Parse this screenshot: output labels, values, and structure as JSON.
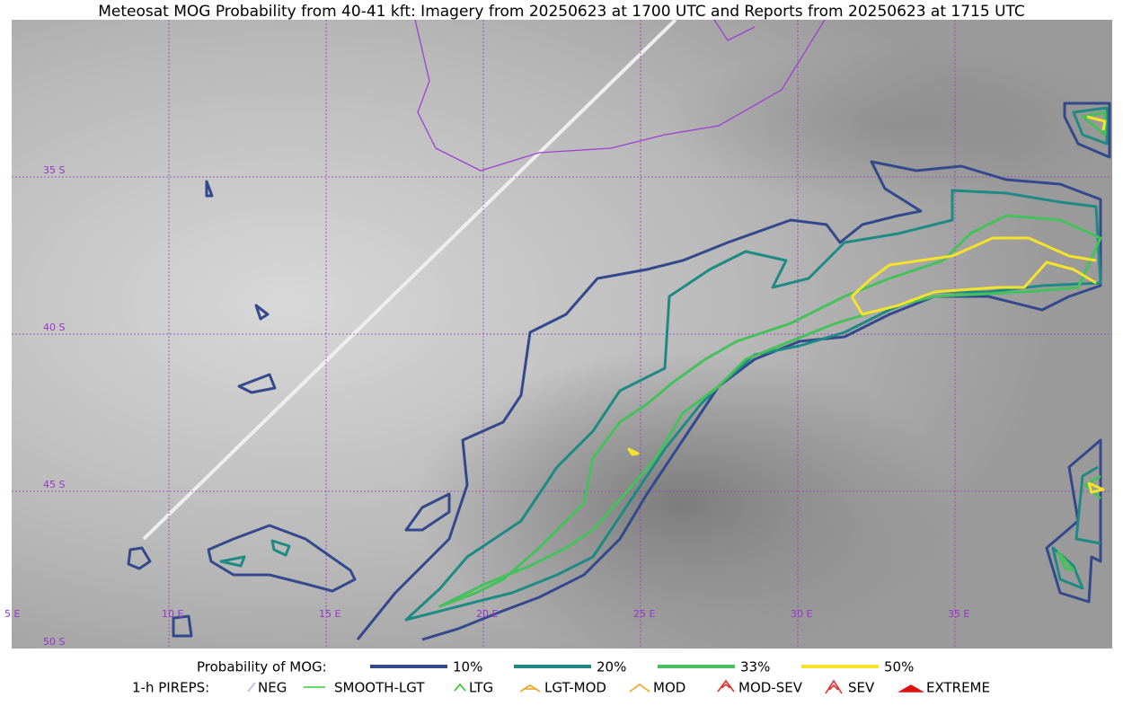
{
  "title": "Meteosat MOG Probability from 40-41 kft: Imagery from 20250623 at 1700 UTC and Reports from 20250623 at 1715 UTC",
  "map": {
    "lon_labels": [
      "5 E",
      "10 E",
      "15 E",
      "20 E",
      "25 E",
      "30 E",
      "35 E"
    ],
    "lat_labels": [
      "35 S",
      "40 S",
      "45 S",
      "50 S"
    ]
  },
  "legend": {
    "title": "Probability of MOG:",
    "levels": [
      {
        "label": "10%",
        "color": "#34498c"
      },
      {
        "label": "20%",
        "color": "#1f8a84"
      },
      {
        "label": "33%",
        "color": "#45c05c"
      },
      {
        "label": "50%",
        "color": "#f5e22a"
      }
    ]
  },
  "pireps": {
    "title": "1-h PIREPS:",
    "items": [
      {
        "label": "NEG",
        "color": "#b0b8ee"
      },
      {
        "label": "SMOOTH-LGT",
        "color": "#33cc33"
      },
      {
        "label": "LTG",
        "color": "#22cc22"
      },
      {
        "label": "LGT-MOD",
        "color": "#f0a020"
      },
      {
        "label": "MOD",
        "color": "#f0a020"
      },
      {
        "label": "MOD-SEV",
        "color": "#e03030"
      },
      {
        "label": "SEV",
        "color": "#e03030"
      },
      {
        "label": "EXTREME",
        "color": "#e01010"
      }
    ]
  }
}
